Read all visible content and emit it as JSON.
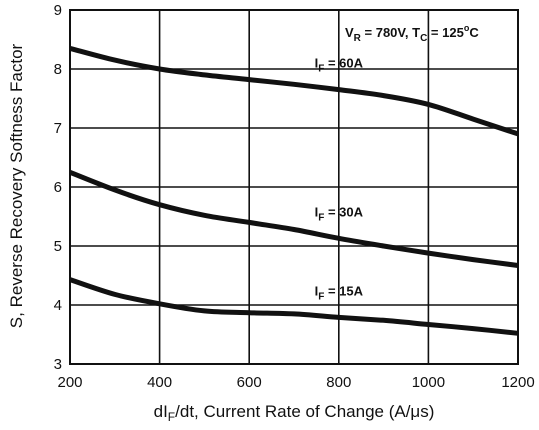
{
  "chart_data": {
    "type": "line",
    "title": "",
    "xlabel": {
      "pre": "dI",
      "sub": "F",
      "post": "/dt, Current Rate of Change (A/μs)"
    },
    "ylabel": "S, Reverse Recovery Softness Factor",
    "xlim": [
      200,
      1200
    ],
    "ylim": [
      3,
      9
    ],
    "xticks": [
      200,
      400,
      600,
      800,
      1000,
      1200
    ],
    "yticks": [
      3,
      4,
      5,
      6,
      7,
      8,
      9
    ],
    "grid": true,
    "condition": {
      "v_pre": "V",
      "v_sub": "R",
      "v_val": " = 780V, ",
      "t_pre": "T",
      "t_sub": "C",
      "t_val": " = 125",
      "t_sup": "o",
      "t_unit": "C"
    },
    "series": [
      {
        "name": "IF = 60A",
        "label_pre": "I",
        "label_sub": "F",
        "label_post": " = 60A",
        "x": [
          200,
          300,
          400,
          500,
          600,
          700,
          800,
          900,
          1000,
          1100,
          1200
        ],
        "y": [
          8.35,
          8.15,
          8.0,
          7.9,
          7.82,
          7.74,
          7.65,
          7.55,
          7.4,
          7.15,
          6.9
        ]
      },
      {
        "name": "IF = 30A",
        "label_pre": "I",
        "label_sub": "F",
        "label_post": " = 30A",
        "x": [
          200,
          300,
          400,
          500,
          600,
          700,
          800,
          900,
          1000,
          1100,
          1200
        ],
        "y": [
          6.25,
          5.95,
          5.7,
          5.52,
          5.4,
          5.28,
          5.13,
          5.0,
          4.88,
          4.77,
          4.67
        ]
      },
      {
        "name": "IF = 15A",
        "label_pre": "I",
        "label_sub": "F",
        "label_post": " = 15A",
        "x": [
          200,
          300,
          400,
          500,
          600,
          700,
          800,
          900,
          1000,
          1100,
          1200
        ],
        "y": [
          4.43,
          4.18,
          4.02,
          3.9,
          3.87,
          3.85,
          3.79,
          3.74,
          3.67,
          3.6,
          3.52
        ]
      }
    ]
  }
}
